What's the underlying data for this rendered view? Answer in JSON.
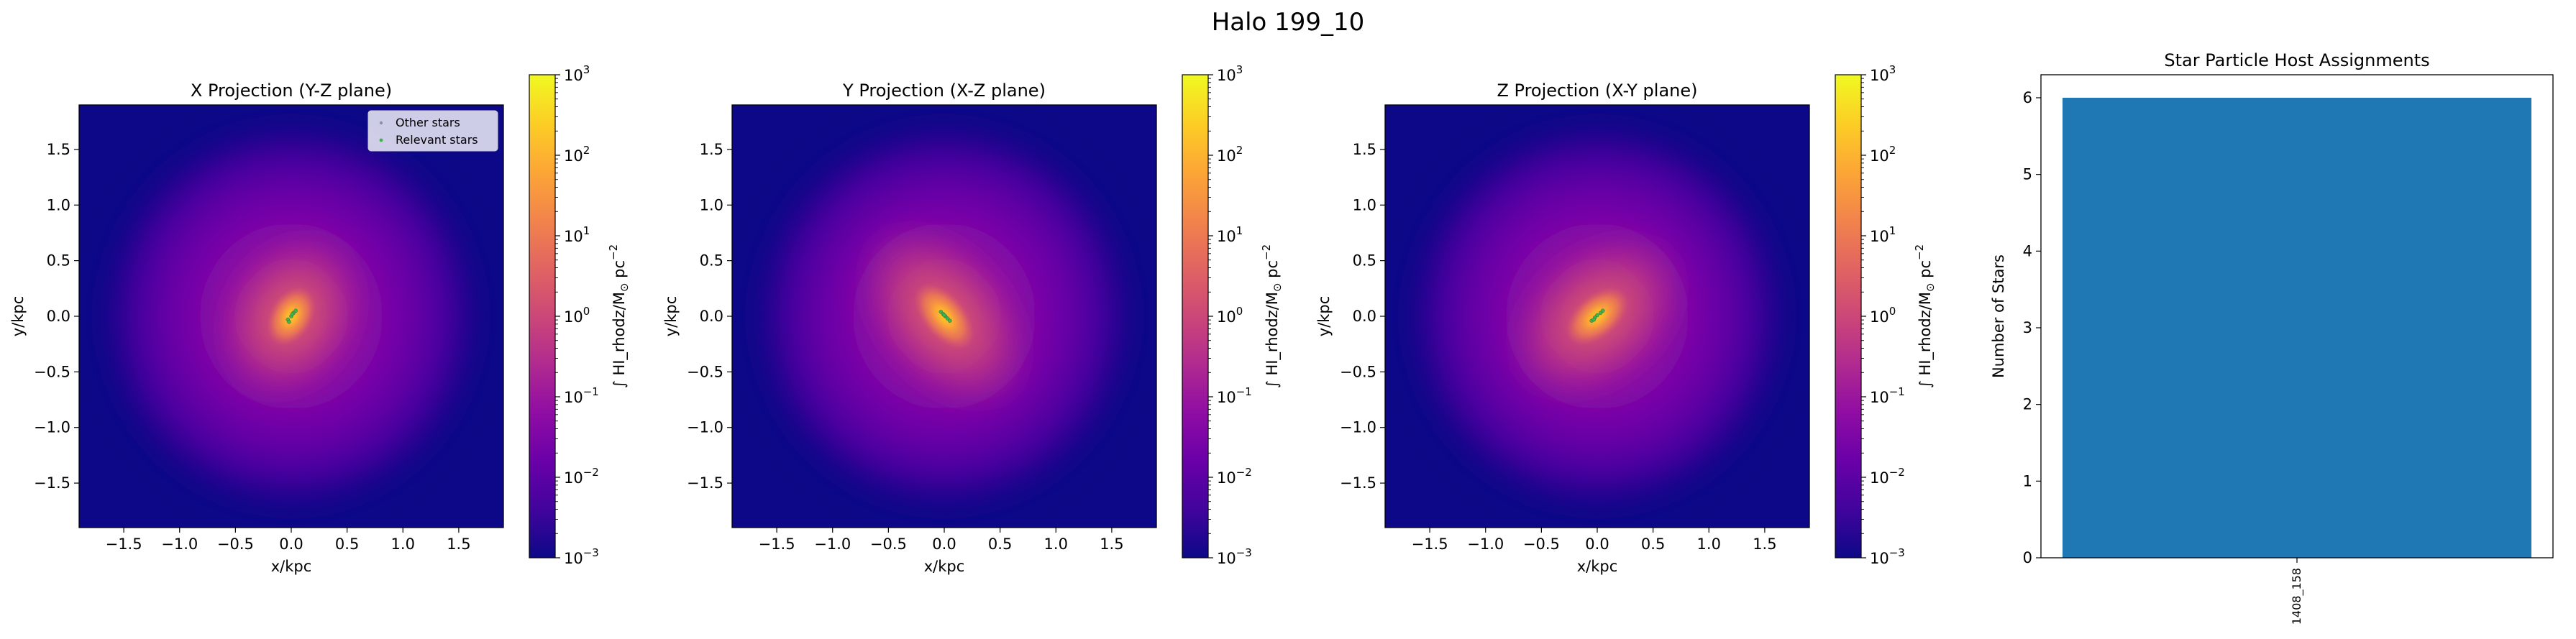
{
  "figure": {
    "suptitle": "Halo 199_10"
  },
  "colors": {
    "background_low": "#0d0887",
    "colormap": "plasma",
    "bar": "#1f77b4",
    "relevant_star": "#3fb34f",
    "other_star": "#000000"
  },
  "legend": {
    "entries": [
      "Other stars",
      "Relevant stars"
    ],
    "location": "top-right of first panel"
  },
  "colorbar": {
    "label": "∫ HI_rhodz/M⊙ pc⁻²",
    "label_main": "∫ HI_rhodz/M",
    "label_sun": "⊙",
    "label_pc": "pc",
    "label_exp": "−2",
    "scale": "log",
    "range": [
      0.001,
      1000
    ],
    "ticks": [
      {
        "base": "10",
        "exp": "3"
      },
      {
        "base": "10",
        "exp": "2"
      },
      {
        "base": "10",
        "exp": "1"
      },
      {
        "base": "10",
        "exp": "0"
      },
      {
        "base": "10",
        "exp": "−1"
      },
      {
        "base": "10",
        "exp": "−2"
      },
      {
        "base": "10",
        "exp": "−3"
      }
    ]
  },
  "chart_data": [
    {
      "type": "heatmap",
      "title": "X Projection (Y-Z plane)",
      "xlabel": "x/kpc",
      "ylabel": "y/kpc",
      "xlim": [
        -1.9,
        1.9
      ],
      "ylim": [
        -1.9,
        1.9
      ],
      "xticks": [
        "−1.5",
        "−1.0",
        "−0.5",
        "0.0",
        "0.5",
        "1.0",
        "1.5"
      ],
      "yticks": [
        "1.5",
        "1.0",
        "0.5",
        "0.0",
        "−0.5",
        "−1.0",
        "−1.5"
      ],
      "core": {
        "x": 0.0,
        "y": 0.0,
        "elongation_angle_deg": 60,
        "elongation": 1.3
      },
      "stars": [
        [
          -0.03,
          -0.03
        ],
        [
          0.0,
          0.0
        ],
        [
          0.02,
          0.03
        ],
        [
          0.04,
          0.05
        ],
        [
          -0.02,
          -0.05
        ],
        [
          0.01,
          0.02
        ]
      ],
      "show_legend": true
    },
    {
      "type": "heatmap",
      "title": "Y Projection (X-Z plane)",
      "xlabel": "x/kpc",
      "ylabel": "y/kpc",
      "xlim": [
        -1.9,
        1.9
      ],
      "ylim": [
        -1.9,
        1.9
      ],
      "xticks": [
        "−1.5",
        "−1.0",
        "−0.5",
        "0.0",
        "0.5",
        "1.0",
        "1.5"
      ],
      "yticks": [
        "1.5",
        "1.0",
        "0.5",
        "0.0",
        "−0.5",
        "−1.0",
        "−1.5"
      ],
      "core": {
        "x": 0.0,
        "y": 0.0,
        "elongation_angle_deg": -50,
        "elongation": 1.6
      },
      "stars": [
        [
          -0.03,
          0.04
        ],
        [
          -0.01,
          0.02
        ],
        [
          0.01,
          0.0
        ],
        [
          0.03,
          -0.02
        ],
        [
          0.05,
          -0.04
        ],
        [
          0.0,
          0.01
        ]
      ],
      "show_legend": false
    },
    {
      "type": "heatmap",
      "title": "Z Projection (X-Y plane)",
      "xlabel": "x/kpc",
      "ylabel": "y/kpc",
      "xlim": [
        -1.9,
        1.9
      ],
      "ylim": [
        -1.9,
        1.9
      ],
      "xticks": [
        "−1.5",
        "−1.0",
        "−0.5",
        "0.0",
        "0.5",
        "1.0",
        "1.5"
      ],
      "yticks": [
        "1.5",
        "1.0",
        "0.5",
        "0.0",
        "−0.5",
        "−1.0",
        "−1.5"
      ],
      "core": {
        "x": 0.0,
        "y": 0.0,
        "elongation_angle_deg": 40,
        "elongation": 1.5
      },
      "stars": [
        [
          -0.05,
          -0.04
        ],
        [
          -0.02,
          -0.01
        ],
        [
          0.0,
          0.01
        ],
        [
          0.03,
          0.03
        ],
        [
          0.05,
          0.05
        ],
        [
          -0.03,
          -0.03
        ]
      ],
      "show_legend": false
    },
    {
      "type": "bar",
      "title": "Star Particle Host Assignments",
      "xlabel": "",
      "ylabel": "Number of Stars",
      "categories": [
        "1408_158"
      ],
      "values": [
        6
      ],
      "ylim": [
        0,
        6.3
      ],
      "yticks": [
        0,
        1,
        2,
        3,
        4,
        5,
        6
      ]
    }
  ]
}
